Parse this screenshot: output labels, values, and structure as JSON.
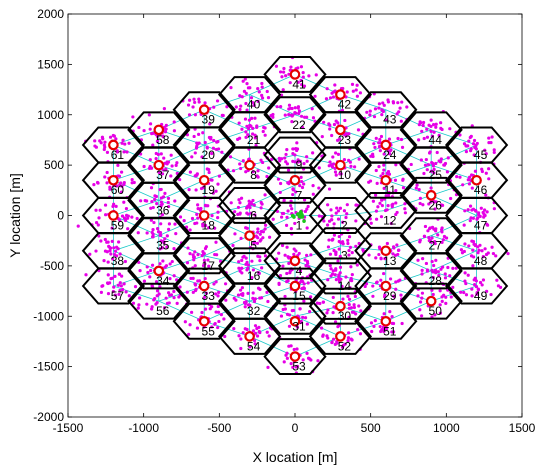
{
  "chart_data": {
    "type": "scatter",
    "title": "",
    "xlabel": "X location [m]",
    "ylabel": "Y location [m]",
    "xlim": [
      -1500,
      1500
    ],
    "ylim": [
      -2000,
      2000
    ],
    "xticks": [
      -1500,
      -1000,
      -500,
      0,
      500,
      1000,
      1500
    ],
    "yticks": [
      -2000,
      -1500,
      -1000,
      -500,
      0,
      500,
      1000,
      1500,
      2000
    ],
    "grid": false,
    "legend": "none",
    "hex_radius_m": 200,
    "cluster_spread_m": 70,
    "users_per_cell": 28,
    "colors": {
      "hex_edge": "#000000",
      "link_line": "#19c8c8",
      "ue_point": "#e600e6",
      "base_station": "#e60000",
      "serving_cluster": "#19c819"
    },
    "cells": [
      {
        "id": 1,
        "x": 0,
        "y": 0
      },
      {
        "id": 2,
        "x": 300,
        "y": 0
      },
      {
        "id": 3,
        "x": 300,
        "y": -300
      },
      {
        "id": 4,
        "x": 0,
        "y": -450
      },
      {
        "id": 5,
        "x": -300,
        "y": -200
      },
      {
        "id": 6,
        "x": -300,
        "y": 100
      },
      {
        "id": 7,
        "x": 0,
        "y": 300
      },
      {
        "id": 8,
        "x": -300,
        "y": 500
      },
      {
        "id": 9,
        "x": 0,
        "y": 600
      },
      {
        "id": 10,
        "x": 300,
        "y": 500
      },
      {
        "id": 11,
        "x": 600,
        "y": 350
      },
      {
        "id": 12,
        "x": 600,
        "y": 50
      },
      {
        "id": 13,
        "x": 600,
        "y": -350
      },
      {
        "id": 14,
        "x": 300,
        "y": -600
      },
      {
        "id": 15,
        "x": 0,
        "y": -700
      },
      {
        "id": 16,
        "x": -300,
        "y": -500
      },
      {
        "id": 17,
        "x": -600,
        "y": -400
      },
      {
        "id": 18,
        "x": -600,
        "y": 0
      },
      {
        "id": 19,
        "x": -600,
        "y": 350
      },
      {
        "id": 20,
        "x": -600,
        "y": 700
      },
      {
        "id": 21,
        "x": -300,
        "y": 850
      },
      {
        "id": 22,
        "x": 0,
        "y": 1000
      },
      {
        "id": 23,
        "x": 300,
        "y": 850
      },
      {
        "id": 24,
        "x": 600,
        "y": 700
      },
      {
        "id": 25,
        "x": 900,
        "y": 500
      },
      {
        "id": 26,
        "x": 900,
        "y": 200
      },
      {
        "id": 27,
        "x": 900,
        "y": -200
      },
      {
        "id": 28,
        "x": 900,
        "y": -550
      },
      {
        "id": 29,
        "x": 600,
        "y": -700
      },
      {
        "id": 30,
        "x": 300,
        "y": -900
      },
      {
        "id": 31,
        "x": 0,
        "y": -1000
      },
      {
        "id": 32,
        "x": -300,
        "y": -850
      },
      {
        "id": 33,
        "x": -600,
        "y": -700
      },
      {
        "id": 34,
        "x": -900,
        "y": -550
      },
      {
        "id": 35,
        "x": -900,
        "y": -200
      },
      {
        "id": 36,
        "x": -900,
        "y": 150
      },
      {
        "id": 37,
        "x": -900,
        "y": 500
      },
      {
        "id": 38,
        "x": -1200,
        "y": -350
      },
      {
        "id": 39,
        "x": -600,
        "y": 1050
      },
      {
        "id": 40,
        "x": -300,
        "y": 1200
      },
      {
        "id": 41,
        "x": 0,
        "y": 1400
      },
      {
        "id": 42,
        "x": 300,
        "y": 1200
      },
      {
        "id": 43,
        "x": 600,
        "y": 1050
      },
      {
        "id": 44,
        "x": 900,
        "y": 850
      },
      {
        "id": 45,
        "x": 1200,
        "y": 700
      },
      {
        "id": 46,
        "x": 1200,
        "y": 350
      },
      {
        "id": 47,
        "x": 1200,
        "y": 0
      },
      {
        "id": 48,
        "x": 1200,
        "y": -350
      },
      {
        "id": 49,
        "x": 1200,
        "y": -700
      },
      {
        "id": 50,
        "x": 900,
        "y": -850
      },
      {
        "id": 51,
        "x": 600,
        "y": -1050
      },
      {
        "id": 52,
        "x": 300,
        "y": -1200
      },
      {
        "id": 53,
        "x": 0,
        "y": -1400
      },
      {
        "id": 54,
        "x": -300,
        "y": -1200
      },
      {
        "id": 55,
        "x": -600,
        "y": -1050
      },
      {
        "id": 56,
        "x": -900,
        "y": -850
      },
      {
        "id": 57,
        "x": -1200,
        "y": -700
      },
      {
        "id": 58,
        "x": -900,
        "y": 850
      },
      {
        "id": 59,
        "x": -1200,
        "y": 0
      },
      {
        "id": 60,
        "x": -1200,
        "y": 350
      },
      {
        "id": 61,
        "x": -1200,
        "y": 700
      }
    ],
    "base_stations": [
      [
        0,
        1400
      ],
      [
        300,
        1200
      ],
      [
        -600,
        1050
      ],
      [
        -900,
        850
      ],
      [
        -1200,
        700
      ],
      [
        -900,
        500
      ],
      [
        -300,
        500
      ],
      [
        -600,
        350
      ],
      [
        0,
        350
      ],
      [
        300,
        500
      ],
      [
        600,
        700
      ],
      [
        600,
        350
      ],
      [
        900,
        200
      ],
      [
        1200,
        350
      ],
      [
        -1200,
        350
      ],
      [
        -1200,
        0
      ],
      [
        -600,
        0
      ],
      [
        -300,
        -200
      ],
      [
        600,
        -350
      ],
      [
        -900,
        -550
      ],
      [
        -600,
        -700
      ],
      [
        0,
        -700
      ],
      [
        300,
        -900
      ],
      [
        600,
        -700
      ],
      [
        900,
        -850
      ],
      [
        600,
        -1050
      ],
      [
        -600,
        -1050
      ],
      [
        -300,
        -1200
      ],
      [
        0,
        -1050
      ],
      [
        300,
        -1200
      ],
      [
        0,
        -1400
      ],
      [
        0,
        -450
      ],
      [
        300,
        850
      ]
    ],
    "serving_cluster": {
      "x": 20,
      "y": 10,
      "points": 12
    }
  }
}
